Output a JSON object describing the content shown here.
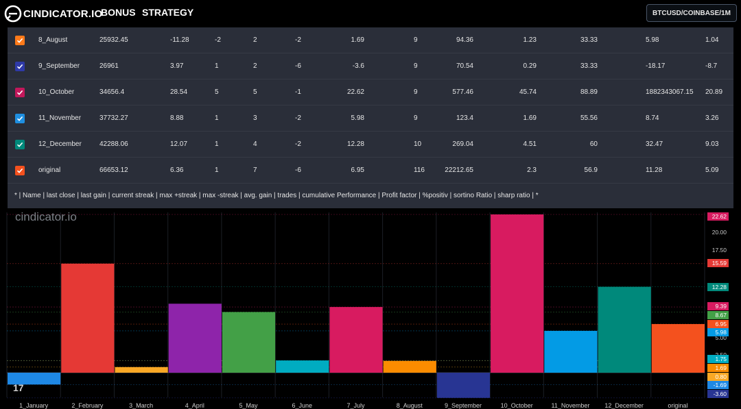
{
  "header": {
    "logo_text": "CINDICATOR.IO",
    "nav": [
      "BONUS",
      "STRATEGY"
    ],
    "symbol": "BTCUSD/COINBASE/1M"
  },
  "table": {
    "rows": [
      {
        "name": "8_August",
        "color": "#ff7a1a",
        "cells": [
          "25932.45",
          "-11.28",
          "-2",
          "2",
          "-2",
          "1.69",
          "9",
          "94.36",
          "1.23",
          "33.33",
          "5.98",
          "1.04"
        ]
      },
      {
        "name": "9_September",
        "color": "#2f3aa8",
        "cells": [
          "26961",
          "3.97",
          "1",
          "2",
          "-6",
          "-3.6",
          "9",
          "70.54",
          "0.29",
          "33.33",
          "-18.17",
          "-8.7"
        ]
      },
      {
        "name": "10_October",
        "color": "#c2185b",
        "cells": [
          "34656.4",
          "28.54",
          "5",
          "5",
          "-1",
          "22.62",
          "9",
          "577.46",
          "45.74",
          "88.89",
          "1882343067.15",
          "20.89"
        ]
      },
      {
        "name": "11_November",
        "color": "#1f8fe0",
        "cells": [
          "37732.27",
          "8.88",
          "1",
          "3",
          "-2",
          "5.98",
          "9",
          "123.4",
          "1.69",
          "55.56",
          "8.74",
          "3.26"
        ]
      },
      {
        "name": "12_December",
        "color": "#00897b",
        "cells": [
          "42288.06",
          "12.07",
          "1",
          "4",
          "-2",
          "12.28",
          "10",
          "269.04",
          "4.51",
          "60",
          "32.47",
          "9.03"
        ]
      },
      {
        "name": "original",
        "color": "#f4511e",
        "cells": [
          "66653.12",
          "6.36",
          "1",
          "7",
          "-6",
          "6.95",
          "116",
          "22212.65",
          "2.3",
          "56.9",
          "11.28",
          "5.09"
        ]
      }
    ],
    "legend": "* | Name | last close | last gain | current streak | max +streak | max -streak | avg. gain | trades | cumulative Performance | Profit factor | %positiv | sortino Ratio | sharp ratio | *"
  },
  "chart_watermark": "cindicator.io",
  "chart_data": {
    "type": "bar",
    "categories": [
      "1_January",
      "2_February",
      "3_March",
      "4_April",
      "5_May",
      "6_June",
      "7_July",
      "8_August",
      "9_September",
      "10_October",
      "11_November",
      "12_December",
      "original"
    ],
    "values": [
      -1.69,
      15.59,
      0.8,
      9.86,
      8.67,
      1.75,
      9.39,
      1.69,
      -3.6,
      22.62,
      5.98,
      12.28,
      6.95
    ],
    "colors": [
      "#1e88e5",
      "#e53935",
      "#f9a825",
      "#8e24aa",
      "#43a047",
      "#00acc1",
      "#d81b60",
      "#fb8c00",
      "#283593",
      "#d81b60",
      "#039be5",
      "#00897b",
      "#f4511e"
    ],
    "ylim": [
      -3.6,
      22.62
    ],
    "y_ticks": [
      "20.00",
      "17.50",
      "5.00",
      "2.50"
    ],
    "price_labels": [
      {
        "text": "22.62",
        "value": 22.62,
        "color": "#d81b60"
      },
      {
        "text": "15.59",
        "value": 15.59,
        "color": "#e53935"
      },
      {
        "text": "12.28",
        "value": 12.28,
        "color": "#00897b"
      },
      {
        "text": "9.39",
        "value": 9.39,
        "color": "#d81b60"
      },
      {
        "text": "8.67",
        "value": 8.67,
        "color": "#43a047"
      },
      {
        "text": "6.95",
        "value": 6.95,
        "color": "#f4511e"
      },
      {
        "text": "5.98",
        "value": 5.98,
        "color": "#039be5"
      },
      {
        "text": "1.75",
        "value": 1.75,
        "color": "#00acc1"
      },
      {
        "text": "1.69",
        "value": 1.69,
        "color": "#fb8c00"
      },
      {
        "text": "0.80",
        "value": 0.8,
        "color": "#f9a825"
      },
      {
        "text": "-1.69",
        "value": -1.69,
        "color": "#1e88e5"
      },
      {
        "text": "-3.60",
        "value": -3.6,
        "color": "#283593"
      }
    ],
    "grid": true,
    "xlabel": "",
    "ylabel": ""
  }
}
